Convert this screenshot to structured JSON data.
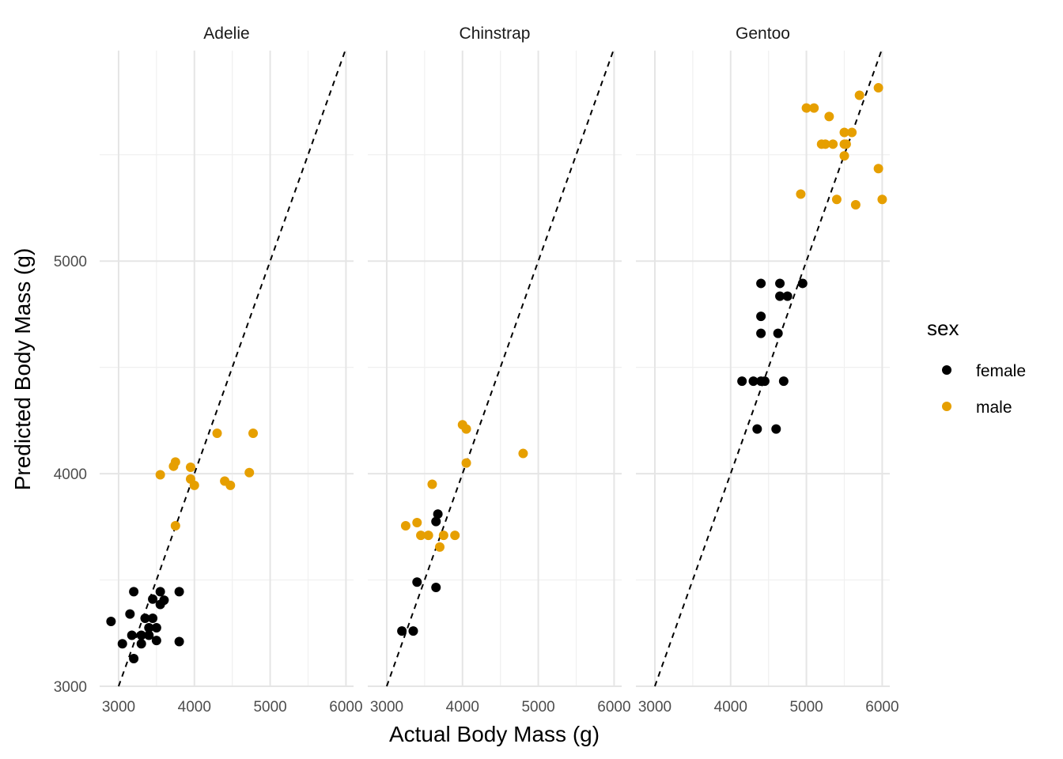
{
  "colors": {
    "female": "#000000",
    "male": "#E69F00",
    "grid_major": "#e5e5e5",
    "grid_minor": "#f0f0f0",
    "reference_line": "#000000"
  },
  "chart_data": {
    "type": "scatter",
    "xlabel": "Actual Body Mass (g)",
    "ylabel": "Predicted Body Mass (g)",
    "xlim": [
      2750,
      6100
    ],
    "ylim": [
      3000,
      5990
    ],
    "x_ticks": [
      3000,
      4000,
      5000,
      6000
    ],
    "y_ticks": [
      3000,
      4000,
      5000
    ],
    "grid": true,
    "reference_line": {
      "style": "dashed",
      "slope": 1,
      "intercept": 0
    },
    "legend": {
      "title": "sex",
      "position": "right",
      "entries": [
        {
          "key": "female",
          "label": "female"
        },
        {
          "key": "male",
          "label": "male"
        }
      ]
    },
    "facets": [
      {
        "name": "Adelie",
        "series": [
          {
            "key": "female",
            "points": [
              [
                2900,
                3305
              ],
              [
                3050,
                3200
              ],
              [
                3150,
                3340
              ],
              [
                3175,
                3240
              ],
              [
                3200,
                3130
              ],
              [
                3200,
                3445
              ],
              [
                3300,
                3240
              ],
              [
                3300,
                3200
              ],
              [
                3350,
                3320
              ],
              [
                3400,
                3275
              ],
              [
                3400,
                3240
              ],
              [
                3450,
                3410
              ],
              [
                3450,
                3320
              ],
              [
                3500,
                3275
              ],
              [
                3500,
                3215
              ],
              [
                3550,
                3445
              ],
              [
                3550,
                3385
              ],
              [
                3600,
                3405
              ],
              [
                3800,
                3445
              ],
              [
                3800,
                3210
              ]
            ]
          },
          {
            "key": "male",
            "points": [
              [
                3550,
                3995
              ],
              [
                3725,
                4035
              ],
              [
                3750,
                4055
              ],
              [
                3750,
                3755
              ],
              [
                3950,
                4030
              ],
              [
                3950,
                3975
              ],
              [
                4000,
                3945
              ],
              [
                4300,
                4190
              ],
              [
                4400,
                3965
              ],
              [
                4475,
                3945
              ],
              [
                4725,
                4005
              ],
              [
                4775,
                4190
              ]
            ]
          }
        ]
      },
      {
        "name": "Chinstrap",
        "series": [
          {
            "key": "female",
            "points": [
              [
                3200,
                3260
              ],
              [
                3350,
                3260
              ],
              [
                3400,
                3490
              ],
              [
                3650,
                3465
              ],
              [
                3650,
                3775
              ],
              [
                3675,
                3810
              ]
            ]
          },
          {
            "key": "male",
            "points": [
              [
                3250,
                3755
              ],
              [
                3400,
                3770
              ],
              [
                3450,
                3710
              ],
              [
                3550,
                3710
              ],
              [
                3600,
                3950
              ],
              [
                3700,
                3655
              ],
              [
                3750,
                3710
              ],
              [
                3900,
                3710
              ],
              [
                4000,
                4230
              ],
              [
                4050,
                4210
              ],
              [
                4050,
                4050
              ],
              [
                4800,
                4095
              ]
            ]
          }
        ]
      },
      {
        "name": "Gentoo",
        "series": [
          {
            "key": "female",
            "points": [
              [
                4150,
                4435
              ],
              [
                4300,
                4435
              ],
              [
                4350,
                4210
              ],
              [
                4400,
                4895
              ],
              [
                4400,
                4740
              ],
              [
                4400,
                4660
              ],
              [
                4400,
                4435
              ],
              [
                4450,
                4435
              ],
              [
                4600,
                4210
              ],
              [
                4625,
                4660
              ],
              [
                4650,
                4835
              ],
              [
                4650,
                4895
              ],
              [
                4700,
                4435
              ],
              [
                4750,
                4835
              ],
              [
                4950,
                4895
              ]
            ]
          },
          {
            "key": "male",
            "points": [
              [
                4925,
                5315
              ],
              [
                5000,
                5720
              ],
              [
                5100,
                5720
              ],
              [
                5200,
                5550
              ],
              [
                5250,
                5550
              ],
              [
                5300,
                5680
              ],
              [
                5350,
                5550
              ],
              [
                5400,
                5290
              ],
              [
                5500,
                5605
              ],
              [
                5500,
                5550
              ],
              [
                5500,
                5495
              ],
              [
                5525,
                5550
              ],
              [
                5600,
                5605
              ],
              [
                5650,
                5265
              ],
              [
                5700,
                5780
              ],
              [
                5950,
                5435
              ],
              [
                5950,
                5815
              ],
              [
                6000,
                5290
              ]
            ]
          }
        ]
      }
    ]
  }
}
